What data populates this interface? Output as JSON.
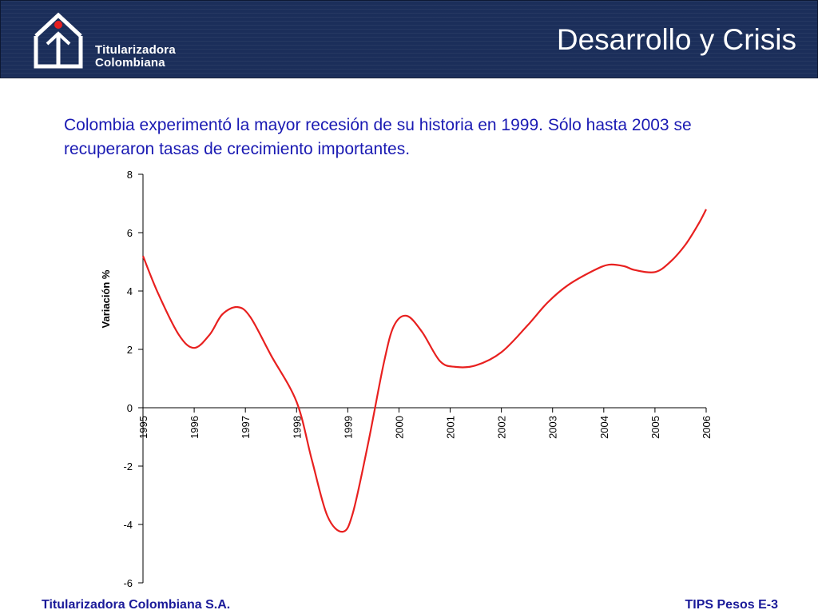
{
  "header": {
    "logo_line1": "Titularizadora",
    "logo_line2": "Colombiana",
    "title": "Desarrollo y Crisis"
  },
  "intro_text": "Colombia experimentó la mayor recesión de su historia en 1999. Sólo hasta 2003 se recuperaron tasas de crecimiento importantes.",
  "footer": {
    "left": "Titularizadora Colombiana S.A.",
    "right": "TIPS Pesos E-3"
  },
  "colors": {
    "header_bg": "#1b2e5a",
    "text_blue": "#1a1ab3",
    "series_line": "#e8201f",
    "logo_dot": "#e8201f"
  },
  "chart_data": {
    "type": "line",
    "ylabel": "Variación %",
    "xlabel": "",
    "ylim": [
      -6,
      8
    ],
    "yticks": [
      8,
      6,
      4,
      2,
      0,
      -2,
      -4,
      -6
    ],
    "xticks": [
      "1995",
      "1996",
      "1997",
      "1998",
      "1999",
      "2000",
      "2001",
      "2002",
      "2003",
      "2004",
      "2005",
      "2006"
    ],
    "xlim": [
      1995,
      2006
    ],
    "grid": false,
    "series": [
      {
        "points": [
          [
            1995.0,
            5.2
          ],
          [
            1995.3,
            3.9
          ],
          [
            1995.7,
            2.5
          ],
          [
            1996.0,
            2.05
          ],
          [
            1996.3,
            2.5
          ],
          [
            1996.55,
            3.2
          ],
          [
            1996.85,
            3.45
          ],
          [
            1997.1,
            3.1
          ],
          [
            1997.5,
            1.8
          ],
          [
            1998.0,
            0.2
          ],
          [
            1998.3,
            -1.8
          ],
          [
            1998.6,
            -3.7
          ],
          [
            1998.9,
            -4.25
          ],
          [
            1999.1,
            -3.6
          ],
          [
            1999.4,
            -1.2
          ],
          [
            1999.7,
            1.5
          ],
          [
            1999.9,
            2.8
          ],
          [
            2000.15,
            3.15
          ],
          [
            2000.45,
            2.6
          ],
          [
            2000.8,
            1.6
          ],
          [
            2001.1,
            1.4
          ],
          [
            2001.5,
            1.45
          ],
          [
            2002.0,
            1.9
          ],
          [
            2002.5,
            2.8
          ],
          [
            2002.9,
            3.6
          ],
          [
            2003.3,
            4.2
          ],
          [
            2003.8,
            4.7
          ],
          [
            2004.1,
            4.9
          ],
          [
            2004.4,
            4.85
          ],
          [
            2004.6,
            4.72
          ],
          [
            2005.0,
            4.65
          ],
          [
            2005.3,
            5.0
          ],
          [
            2005.6,
            5.6
          ],
          [
            2005.85,
            6.3
          ],
          [
            2006.0,
            6.8
          ]
        ]
      }
    ]
  }
}
